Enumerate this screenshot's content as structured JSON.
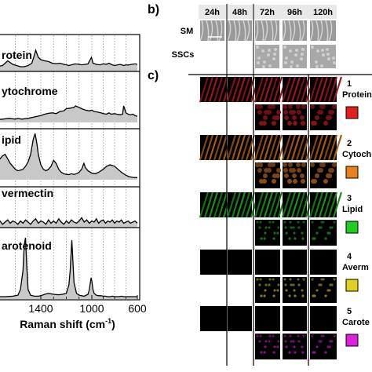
{
  "panel_b": {
    "letter": "b)",
    "time_labels": [
      "24h",
      "48h",
      "72h",
      "96h",
      "120h"
    ],
    "row_labels": [
      "SM",
      "SSCs"
    ]
  },
  "panel_c": {
    "letter": "c)",
    "rows": [
      {
        "num": "1",
        "name": "Protein",
        "color": "#e02020"
      },
      {
        "num": "2",
        "name": "Cytoch",
        "color": "#e8801e"
      },
      {
        "num": "3",
        "name": "Lipid",
        "color": "#22cc22"
      },
      {
        "num": "4",
        "name": "Averm",
        "color": "#e0d020"
      },
      {
        "num": "5",
        "name": "Carote",
        "color": "#dd22dd"
      }
    ]
  },
  "chart_data": {
    "type": "line",
    "xlabel": "Raman shift (cm⁻¹)",
    "xlabel_prefix": "Raman shift (cm",
    "xlabel_sup": "-1",
    "xlabel_suffix": ")",
    "x_ticks": [
      "1400",
      "1000",
      "600"
    ],
    "x_tick_values": [
      1400,
      1000,
      600
    ],
    "xlim": [
      1750,
      600
    ],
    "series": [
      {
        "name": "rotein",
        "x": [
          1750,
          1700,
          1660,
          1620,
          1590,
          1560,
          1530,
          1500,
          1470,
          1450,
          1440,
          1420,
          1400,
          1370,
          1340,
          1310,
          1280,
          1250,
          1220,
          1200,
          1180,
          1160,
          1130,
          1100,
          1080,
          1050,
          1030,
          1003,
          990,
          960,
          930,
          900,
          870,
          850,
          820,
          800,
          780,
          750,
          720,
          700,
          680,
          650,
          620,
          600
        ],
        "y": [
          0.2,
          0.25,
          0.45,
          0.3,
          0.25,
          0.2,
          0.2,
          0.25,
          0.35,
          0.7,
          0.9,
          0.6,
          0.5,
          0.45,
          0.42,
          0.35,
          0.33,
          0.35,
          0.3,
          0.28,
          0.25,
          0.28,
          0.32,
          0.3,
          0.28,
          0.3,
          0.32,
          0.6,
          0.35,
          0.3,
          0.28,
          0.32,
          0.3,
          0.35,
          0.28,
          0.25,
          0.27,
          0.3,
          0.25,
          0.28,
          0.27,
          0.3,
          0.32,
          0.3
        ]
      },
      {
        "name": "ytochrome",
        "x": [
          1750,
          1700,
          1650,
          1600,
          1580,
          1550,
          1500,
          1450,
          1400,
          1370,
          1340,
          1310,
          1280,
          1250,
          1220,
          1200,
          1170,
          1140,
          1128,
          1100,
          1080,
          1050,
          1020,
          1000,
          980,
          950,
          920,
          900,
          870,
          850,
          830,
          800,
          780,
          750,
          730,
          720,
          700,
          680,
          660,
          640,
          620,
          600
        ],
        "y": [
          0.1,
          0.12,
          0.15,
          0.12,
          0.15,
          0.12,
          0.15,
          0.2,
          0.25,
          0.3,
          0.33,
          0.35,
          0.32,
          0.4,
          0.42,
          0.5,
          0.52,
          0.55,
          0.6,
          0.55,
          0.5,
          0.45,
          0.42,
          0.45,
          0.4,
          0.38,
          0.35,
          0.32,
          0.3,
          0.35,
          0.3,
          0.32,
          0.3,
          0.28,
          0.3,
          0.6,
          0.35,
          0.3,
          0.28,
          0.3,
          0.25,
          0.22
        ]
      },
      {
        "name": "ipid",
        "x": [
          1750,
          1720,
          1700,
          1680,
          1660,
          1640,
          1620,
          1600,
          1580,
          1560,
          1540,
          1520,
          1500,
          1480,
          1460,
          1445,
          1430,
          1420,
          1400,
          1380,
          1360,
          1340,
          1320,
          1300,
          1280,
          1260,
          1240,
          1220,
          1200,
          1180,
          1160,
          1140,
          1120,
          1100,
          1080,
          1062,
          1050,
          1030,
          1000,
          970,
          940,
          900,
          870,
          840,
          800,
          770,
          740,
          700,
          670,
          640,
          610,
          600
        ],
        "y": [
          0.6,
          0.7,
          0.8,
          0.85,
          0.7,
          0.55,
          0.45,
          0.35,
          0.3,
          0.32,
          0.35,
          0.45,
          0.6,
          0.85,
          1.35,
          1.55,
          1.2,
          0.85,
          0.5,
          0.35,
          0.3,
          0.35,
          0.45,
          0.65,
          0.55,
          0.35,
          0.25,
          0.2,
          0.18,
          0.17,
          0.2,
          0.18,
          0.2,
          0.25,
          0.35,
          0.55,
          0.4,
          0.3,
          0.22,
          0.2,
          0.25,
          0.35,
          0.45,
          0.5,
          0.45,
          0.35,
          0.25,
          0.15,
          0.1,
          0.08,
          0.07,
          0.07
        ]
      },
      {
        "name": "vermectin",
        "x": [
          1750,
          1720,
          1700,
          1680,
          1660,
          1640,
          1620,
          1600,
          1580,
          1560,
          1540,
          1520,
          1500,
          1480,
          1460,
          1440,
          1420,
          1400,
          1380,
          1360,
          1340,
          1320,
          1300,
          1280,
          1260,
          1240,
          1220,
          1200,
          1180,
          1160,
          1140,
          1120,
          1100,
          1080,
          1060,
          1040,
          1020,
          1000,
          980,
          960,
          940,
          920,
          900,
          880,
          860,
          840,
          820,
          800,
          780,
          760,
          740,
          720,
          700,
          680,
          660,
          640,
          620,
          600
        ],
        "y": [
          0.2,
          0.3,
          0.15,
          0.25,
          0.35,
          0.2,
          0.3,
          0.25,
          0.15,
          0.3,
          0.2,
          0.35,
          0.25,
          0.15,
          0.3,
          0.4,
          0.2,
          0.3,
          0.25,
          0.15,
          0.35,
          0.2,
          0.3,
          0.2,
          0.4,
          0.25,
          0.15,
          0.3,
          0.2,
          0.35,
          0.25,
          0.2,
          0.3,
          0.45,
          0.25,
          0.35,
          0.2,
          0.3,
          0.25,
          0.4,
          0.2,
          0.3,
          0.35,
          0.2,
          0.3,
          0.25,
          0.35,
          0.2,
          0.3,
          0.25,
          0.35,
          0.2,
          0.25,
          0.3,
          0.2,
          0.25,
          0.3,
          0.2
        ]
      },
      {
        "name": "arotenoid",
        "x": [
          1750,
          1680,
          1620,
          1580,
          1560,
          1540,
          1530,
          1520,
          1510,
          1500,
          1480,
          1450,
          1420,
          1400,
          1370,
          1340,
          1300,
          1260,
          1230,
          1200,
          1180,
          1170,
          1160,
          1157,
          1150,
          1140,
          1120,
          1100,
          1060,
          1030,
          1020,
          1010,
          1005,
          1000,
          990,
          980,
          960,
          940,
          920,
          900,
          880,
          860,
          840,
          820,
          800,
          780,
          760,
          740,
          720,
          700,
          680,
          650,
          620,
          600
        ],
        "y": [
          0.05,
          0.05,
          0.06,
          0.08,
          0.2,
          0.6,
          1.15,
          1.3,
          0.7,
          0.2,
          0.08,
          0.06,
          0.06,
          0.07,
          0.1,
          0.12,
          0.1,
          0.09,
          0.1,
          0.12,
          0.3,
          0.6,
          1.1,
          1.25,
          0.9,
          0.35,
          0.12,
          0.08,
          0.06,
          0.1,
          0.2,
          0.38,
          0.45,
          0.38,
          0.2,
          0.12,
          0.08,
          0.07,
          0.07,
          0.06,
          0.06,
          0.05,
          0.05,
          0.06,
          0.05,
          0.05,
          0.05,
          0.06,
          0.05,
          0.05,
          0.05,
          0.05,
          0.05,
          0.05
        ]
      }
    ],
    "gridlines_x": [
      1600,
      1500,
      1400,
      1300,
      1200,
      1100,
      1000,
      900,
      800,
      700
    ],
    "grid": "vertical dotted",
    "fill": "#c8c8c8"
  }
}
